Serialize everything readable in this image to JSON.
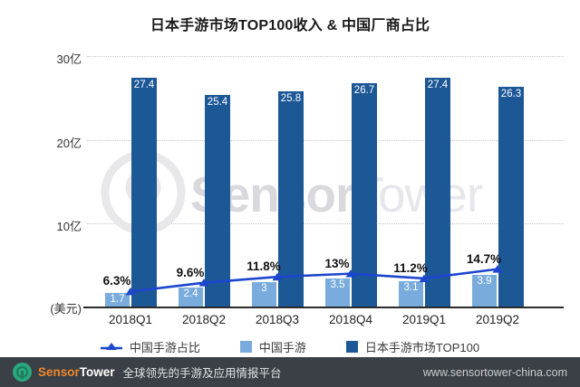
{
  "title": "日本手游市场TOP100收入 & 中国厂商占比",
  "chart_data": {
    "type": "bar",
    "categories": [
      "2018Q1",
      "2018Q2",
      "2018Q3",
      "2018Q4",
      "2019Q1",
      "2019Q2"
    ],
    "series": [
      {
        "name": "中国手游",
        "type": "bar",
        "color": "#79acdc",
        "values": [
          1.7,
          2.4,
          3,
          3.5,
          3.1,
          3.9
        ],
        "value_labels": [
          "1.7",
          "2.4",
          "3",
          "3.5",
          "3.1",
          "3.9"
        ]
      },
      {
        "name": "日本手游市场TOP100",
        "type": "bar",
        "color": "#1c5796",
        "values": [
          27.4,
          25.4,
          25.8,
          26.7,
          27.4,
          26.3
        ],
        "value_labels": [
          "27.4",
          "25.4",
          "25.8",
          "26.7",
          "27.4",
          "26.3"
        ]
      },
      {
        "name": "中国手游占比",
        "type": "line",
        "color": "#1c46ce",
        "values": [
          6.3,
          9.6,
          11.8,
          13,
          11.2,
          14.7
        ],
        "value_labels": [
          "6.3%",
          "9.6%",
          "11.8%",
          "13%",
          "11.2%",
          "14.7%"
        ]
      }
    ],
    "title": "日本手游市场TOP100收入 & 中国厂商占比",
    "xlabel": "",
    "ylabel": "(美元)",
    "ylim": [
      0,
      30
    ],
    "y_axis": {
      "ticks": [
        "30亿",
        "20亿",
        "10亿"
      ],
      "tick_values": [
        30,
        20,
        10
      ],
      "unit": "(美元)"
    },
    "grid": true,
    "legend_position": "bottom"
  },
  "legend": [
    {
      "label": "中国手游占比",
      "marker": "triangle-line",
      "color": "#1c46ce"
    },
    {
      "label": "中国手游",
      "marker": "square",
      "color": "#79acdc"
    },
    {
      "label": "日本手游市场TOP100",
      "marker": "square",
      "color": "#1c5796"
    }
  ],
  "watermark": {
    "sensor": "Sensor",
    "tower": "Tower"
  },
  "footer": {
    "brand_sensor": "Sensor",
    "brand_tower": "Tower",
    "tagline": "全球领先的手游及应用情报平台",
    "url": "www.sensortower-china.com",
    "bg_color": "#3a4045",
    "logo_color": "#2aa87e",
    "accent_orange": "#f0862e"
  }
}
